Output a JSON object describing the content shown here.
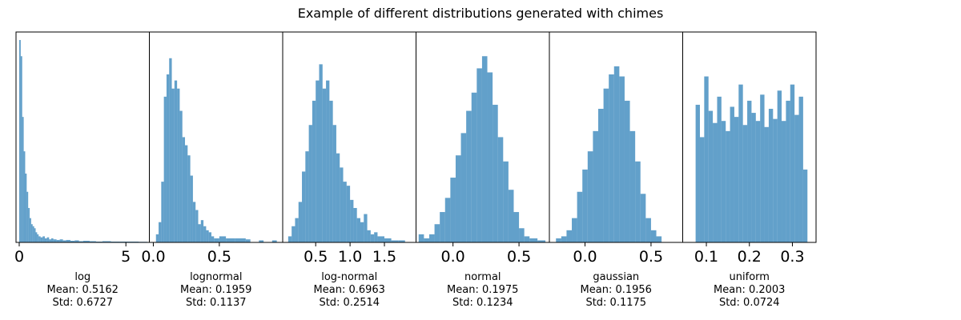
{
  "figure": {
    "title": "Example of different distributions generated with chimes"
  },
  "chart_data": [
    {
      "type": "bar",
      "name": "log",
      "xlabel": [
        "log",
        "Mean: 0.5162",
        "Std: 0.6727"
      ],
      "xlim": [
        -0.15,
        6.1
      ],
      "xticks": [
        0,
        5
      ],
      "tick_labels": [
        "0",
        "5"
      ],
      "bins": [
        [
          0.0,
          1.0
        ],
        [
          0.07,
          0.92
        ],
        [
          0.14,
          0.62
        ],
        [
          0.21,
          0.45
        ],
        [
          0.28,
          0.34
        ],
        [
          0.35,
          0.25
        ],
        [
          0.42,
          0.17
        ],
        [
          0.49,
          0.12
        ],
        [
          0.56,
          0.09
        ],
        [
          0.63,
          0.08
        ],
        [
          0.7,
          0.07
        ],
        [
          0.77,
          0.05
        ],
        [
          0.84,
          0.04
        ],
        [
          0.91,
          0.03
        ],
        [
          1.0,
          0.025
        ],
        [
          1.1,
          0.03
        ],
        [
          1.2,
          0.02
        ],
        [
          1.3,
          0.025
        ],
        [
          1.4,
          0.015
        ],
        [
          1.5,
          0.02
        ],
        [
          1.6,
          0.015
        ],
        [
          1.75,
          0.012
        ],
        [
          1.9,
          0.015
        ],
        [
          2.05,
          0.01
        ],
        [
          2.2,
          0.012
        ],
        [
          2.4,
          0.008
        ],
        [
          2.6,
          0.01
        ],
        [
          2.8,
          0.006
        ],
        [
          3.0,
          0.008
        ],
        [
          3.3,
          0.006
        ],
        [
          3.6,
          0.004
        ],
        [
          3.9,
          0.006
        ],
        [
          4.3,
          0.004
        ],
        [
          4.7,
          0.004
        ],
        [
          5.2,
          0.004
        ],
        [
          5.6,
          0.003
        ]
      ]
    },
    {
      "type": "bar",
      "name": "lognormal",
      "xlabel": [
        "lognormal",
        "Mean: 0.1959",
        "Std: 0.1137"
      ],
      "xlim": [
        -0.03,
        0.98
      ],
      "xticks": [
        0.0,
        0.5
      ],
      "tick_labels": [
        "0.0",
        "0.5"
      ],
      "bins": [
        [
          0.02,
          0.04
        ],
        [
          0.04,
          0.1
        ],
        [
          0.06,
          0.3
        ],
        [
          0.08,
          0.72
        ],
        [
          0.1,
          0.83
        ],
        [
          0.12,
          0.91
        ],
        [
          0.14,
          0.76
        ],
        [
          0.16,
          0.8
        ],
        [
          0.18,
          0.76
        ],
        [
          0.2,
          0.65
        ],
        [
          0.22,
          0.52
        ],
        [
          0.24,
          0.48
        ],
        [
          0.26,
          0.43
        ],
        [
          0.28,
          0.33
        ],
        [
          0.3,
          0.2
        ],
        [
          0.32,
          0.16
        ],
        [
          0.34,
          0.09
        ],
        [
          0.36,
          0.11
        ],
        [
          0.38,
          0.08
        ],
        [
          0.4,
          0.06
        ],
        [
          0.42,
          0.05
        ],
        [
          0.44,
          0.03
        ],
        [
          0.46,
          0.02
        ],
        [
          0.5,
          0.03
        ],
        [
          0.55,
          0.02
        ],
        [
          0.62,
          0.02
        ],
        [
          0.7,
          0.015
        ],
        [
          0.8,
          0.01
        ],
        [
          0.9,
          0.01
        ]
      ]
    },
    {
      "type": "bar",
      "name": "log-normal",
      "xlabel": [
        "log-normal",
        "Mean: 0.6963",
        "Std: 0.2514"
      ],
      "xlim": [
        0.02,
        1.96
      ],
      "xticks": [
        0.5,
        1.0,
        1.5
      ],
      "tick_labels": [
        "0.5",
        "1.0",
        "1.5"
      ],
      "bins": [
        [
          0.1,
          0.03
        ],
        [
          0.15,
          0.08
        ],
        [
          0.2,
          0.12
        ],
        [
          0.25,
          0.2
        ],
        [
          0.3,
          0.35
        ],
        [
          0.35,
          0.45
        ],
        [
          0.4,
          0.58
        ],
        [
          0.45,
          0.7
        ],
        [
          0.5,
          0.8
        ],
        [
          0.55,
          0.88
        ],
        [
          0.6,
          0.76
        ],
        [
          0.65,
          0.8
        ],
        [
          0.7,
          0.7
        ],
        [
          0.75,
          0.58
        ],
        [
          0.8,
          0.44
        ],
        [
          0.85,
          0.37
        ],
        [
          0.9,
          0.3
        ],
        [
          0.95,
          0.28
        ],
        [
          1.0,
          0.21
        ],
        [
          1.05,
          0.17
        ],
        [
          1.1,
          0.12
        ],
        [
          1.15,
          0.1
        ],
        [
          1.2,
          0.14
        ],
        [
          1.25,
          0.06
        ],
        [
          1.3,
          0.04
        ],
        [
          1.35,
          0.05
        ],
        [
          1.4,
          0.03
        ],
        [
          1.5,
          0.02
        ],
        [
          1.6,
          0.01
        ],
        [
          1.7,
          0.01
        ]
      ]
    },
    {
      "type": "bar",
      "name": "normal",
      "xlabel": [
        "normal",
        "Mean: 0.1975",
        "Std: 0.1234"
      ],
      "xlim": [
        -0.28,
        0.73
      ],
      "xticks": [
        0.0,
        0.5
      ],
      "tick_labels": [
        "0.0",
        "0.5"
      ],
      "bins": [
        [
          -0.26,
          0.04
        ],
        [
          -0.22,
          0.02
        ],
        [
          -0.18,
          0.04
        ],
        [
          -0.14,
          0.09
        ],
        [
          -0.1,
          0.15
        ],
        [
          -0.06,
          0.22
        ],
        [
          -0.02,
          0.32
        ],
        [
          0.02,
          0.43
        ],
        [
          0.06,
          0.54
        ],
        [
          0.1,
          0.65
        ],
        [
          0.14,
          0.74
        ],
        [
          0.18,
          0.86
        ],
        [
          0.22,
          0.92
        ],
        [
          0.26,
          0.84
        ],
        [
          0.3,
          0.68
        ],
        [
          0.34,
          0.52
        ],
        [
          0.38,
          0.4
        ],
        [
          0.42,
          0.26
        ],
        [
          0.46,
          0.15
        ],
        [
          0.5,
          0.07
        ],
        [
          0.54,
          0.03
        ],
        [
          0.58,
          0.02
        ],
        [
          0.64,
          0.01
        ]
      ]
    },
    {
      "type": "bar",
      "name": "gaussian",
      "xlabel": [
        "gaussian",
        "Mean: 0.1956",
        "Std: 0.1175"
      ],
      "xlim": [
        -0.27,
        0.74
      ],
      "xticks": [
        0.0,
        0.5
      ],
      "tick_labels": [
        "0.0",
        "0.5"
      ],
      "bins": [
        [
          -0.22,
          0.02
        ],
        [
          -0.18,
          0.03
        ],
        [
          -0.14,
          0.06
        ],
        [
          -0.1,
          0.12
        ],
        [
          -0.06,
          0.25
        ],
        [
          -0.02,
          0.36
        ],
        [
          0.02,
          0.45
        ],
        [
          0.06,
          0.55
        ],
        [
          0.1,
          0.66
        ],
        [
          0.14,
          0.76
        ],
        [
          0.18,
          0.83
        ],
        [
          0.22,
          0.87
        ],
        [
          0.26,
          0.82
        ],
        [
          0.3,
          0.7
        ],
        [
          0.34,
          0.55
        ],
        [
          0.38,
          0.4
        ],
        [
          0.42,
          0.24
        ],
        [
          0.46,
          0.12
        ],
        [
          0.5,
          0.06
        ],
        [
          0.54,
          0.03
        ]
      ]
    },
    {
      "type": "bar",
      "name": "uniform",
      "xlabel": [
        "uniform",
        "Mean: 0.2003",
        "Std: 0.0724"
      ],
      "xlim": [
        0.045,
        0.355
      ],
      "xticks": [
        0.1,
        0.2,
        0.3
      ],
      "tick_labels": [
        "0.1",
        "0.2",
        "0.3"
      ],
      "bins": [
        [
          0.075,
          0.68
        ],
        [
          0.085,
          0.52
        ],
        [
          0.095,
          0.82
        ],
        [
          0.105,
          0.65
        ],
        [
          0.115,
          0.59
        ],
        [
          0.125,
          0.72
        ],
        [
          0.135,
          0.6
        ],
        [
          0.145,
          0.55
        ],
        [
          0.155,
          0.67
        ],
        [
          0.165,
          0.62
        ],
        [
          0.175,
          0.78
        ],
        [
          0.185,
          0.58
        ],
        [
          0.195,
          0.7
        ],
        [
          0.205,
          0.64
        ],
        [
          0.215,
          0.6
        ],
        [
          0.225,
          0.73
        ],
        [
          0.235,
          0.57
        ],
        [
          0.245,
          0.66
        ],
        [
          0.255,
          0.61
        ],
        [
          0.265,
          0.75
        ],
        [
          0.275,
          0.6
        ],
        [
          0.285,
          0.7
        ],
        [
          0.295,
          0.78
        ],
        [
          0.305,
          0.63
        ],
        [
          0.315,
          0.72
        ],
        [
          0.325,
          0.36
        ]
      ]
    }
  ]
}
